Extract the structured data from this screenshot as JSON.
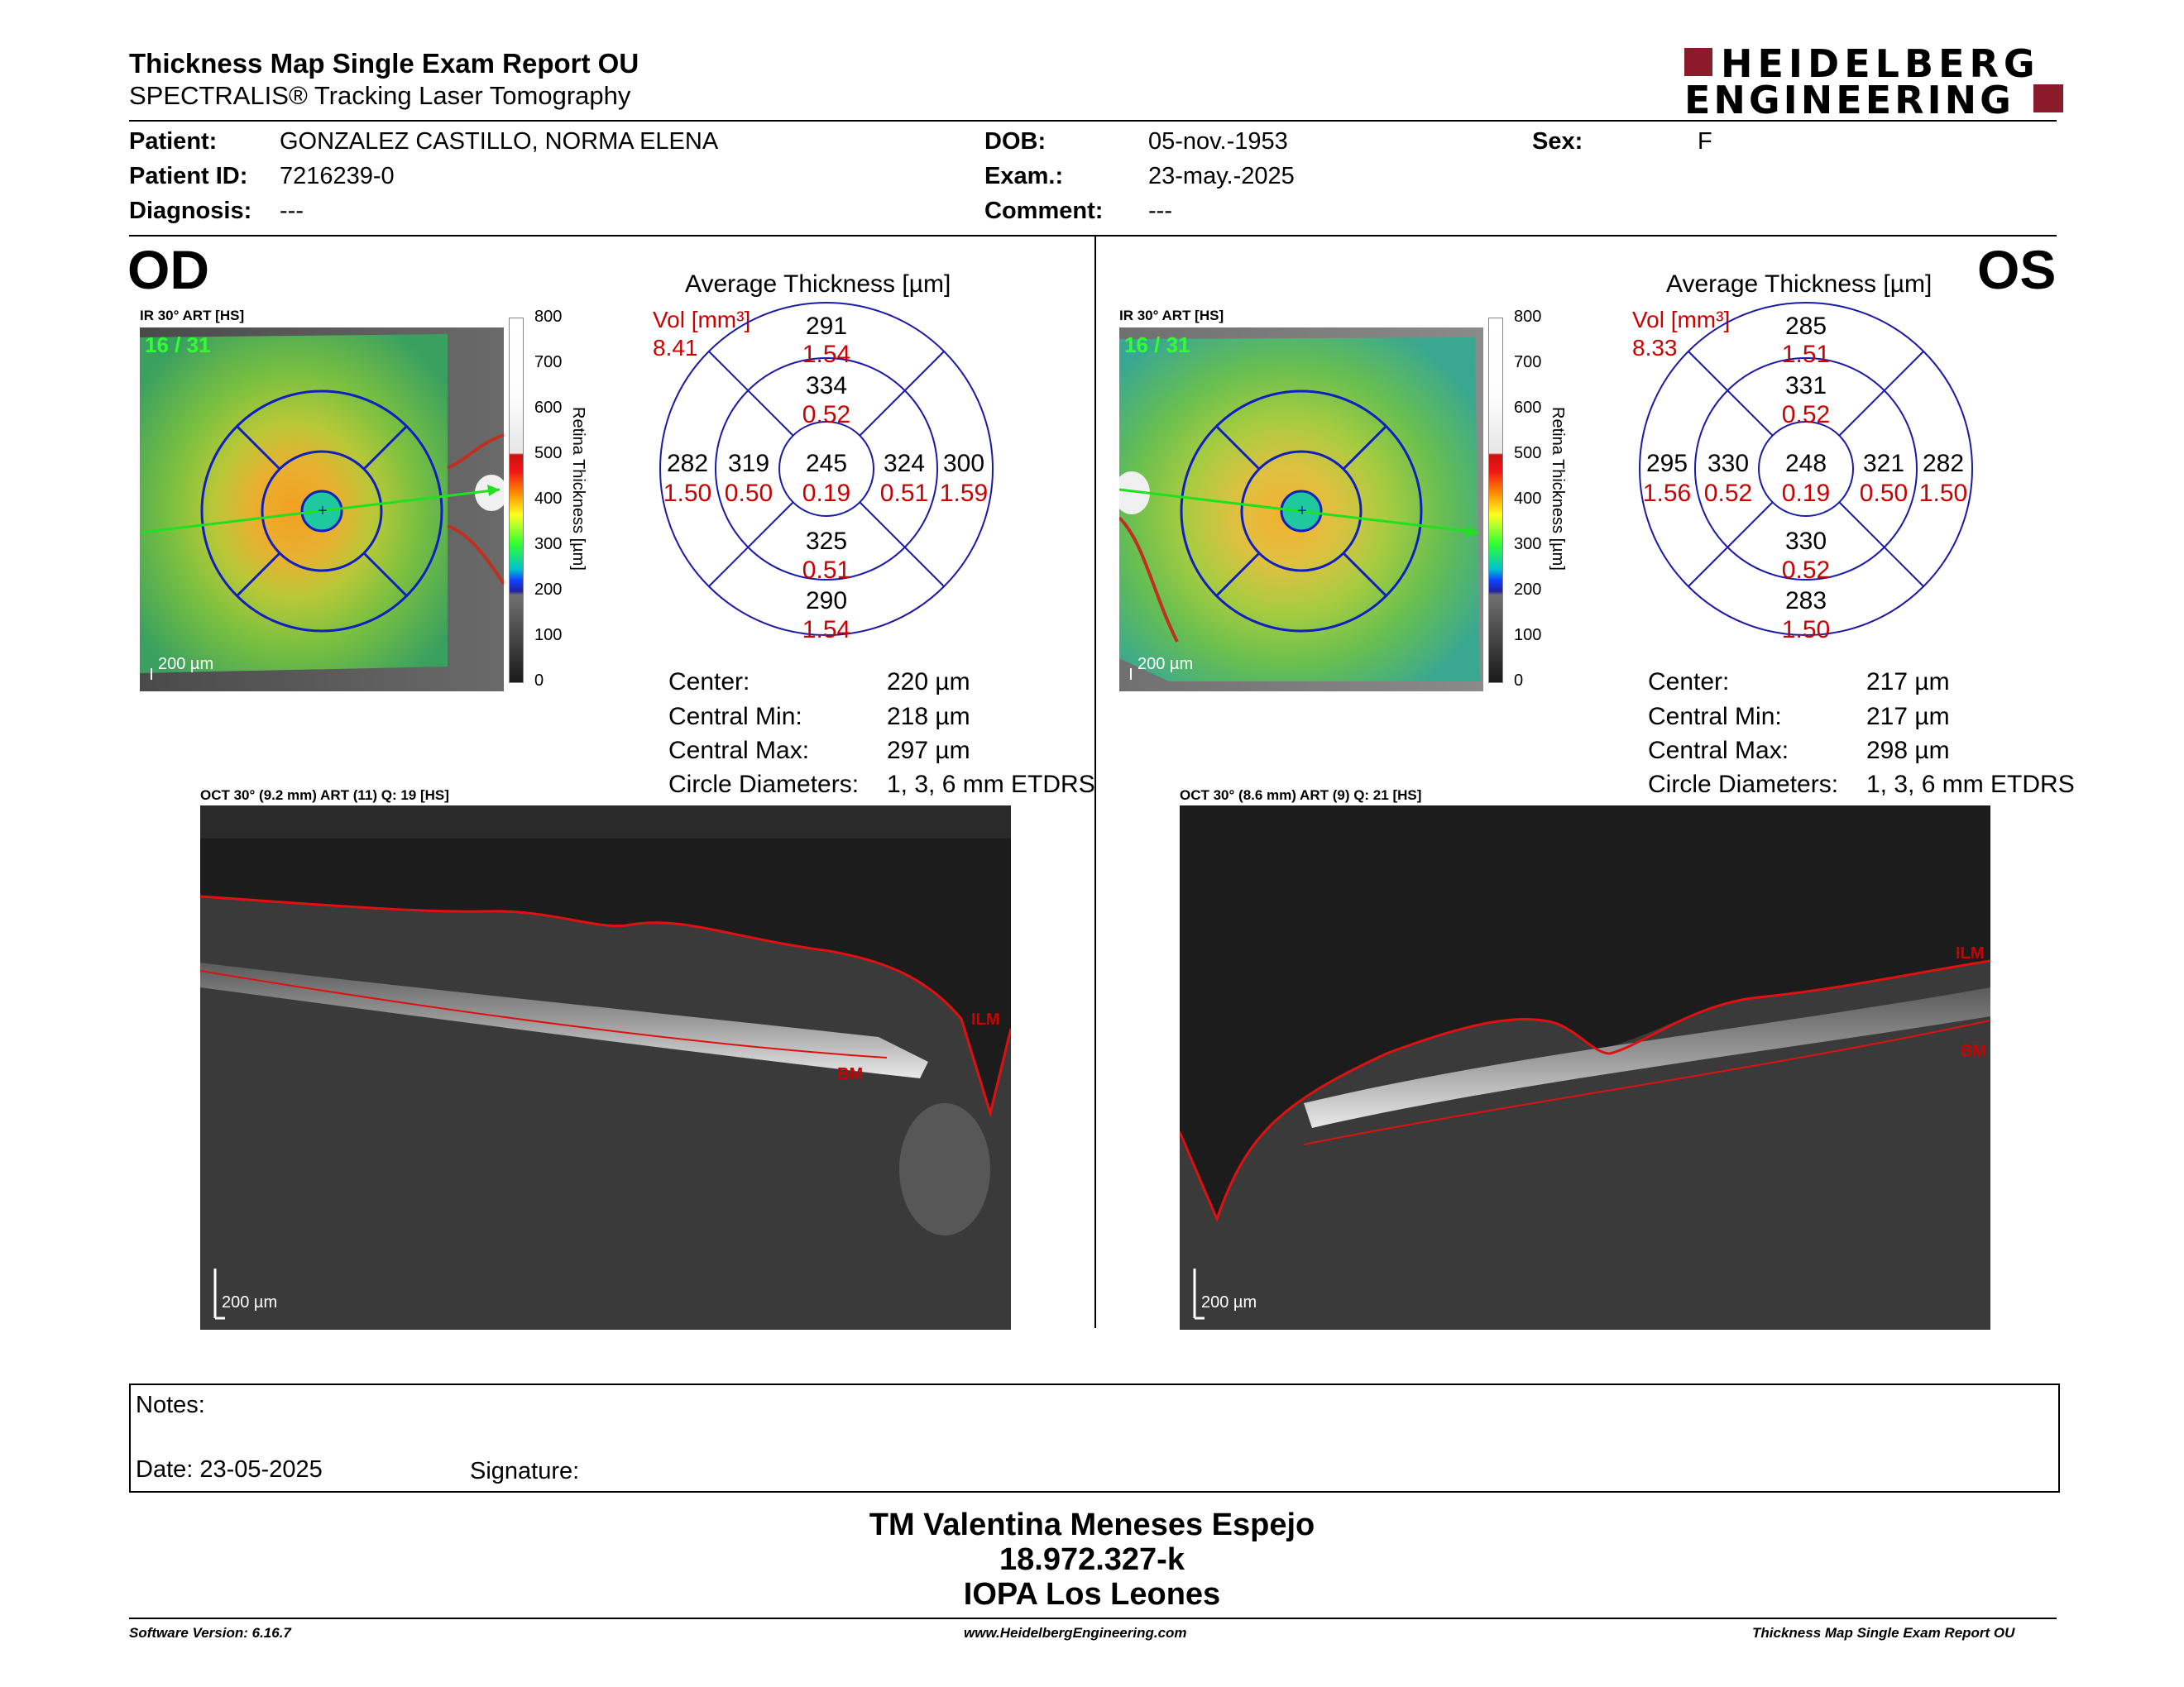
{
  "header": {
    "title": "Thickness Map Single Exam Report OU",
    "subtitle": "SPECTRALIS® Tracking Laser Tomography",
    "logo_line1": "HEIDELBERG",
    "logo_line2": "ENGINEERING",
    "logo_color": "#8b1a2b"
  },
  "patient": {
    "patient_label": "Patient:",
    "patient_value": "GONZALEZ CASTILLO, NORMA ELENA",
    "id_label": "Patient ID:",
    "id_value": "7216239-0",
    "diagnosis_label": "Diagnosis:",
    "diagnosis_value": "---",
    "dob_label": "DOB:",
    "dob_value": "05-nov.-1953",
    "exam_label": "Exam.:",
    "exam_value": "23-may.-2025",
    "comment_label": "Comment:",
    "comment_value": "---",
    "sex_label": "Sex:",
    "sex_value": "F"
  },
  "colorbar": {
    "ticks": [
      "800",
      "700",
      "600",
      "500",
      "400",
      "300",
      "200",
      "100",
      "0"
    ],
    "title": "Retina  Thickness [µm]"
  },
  "od": {
    "eye": "OD",
    "ir_caption": "IR 30° ART [HS]",
    "frame": "16 / 31",
    "scale": "200 µm",
    "avg_title": "Average Thickness [µm]",
    "vol_label": "Vol [mm³]",
    "vol_value": "8.41",
    "sectors": {
      "outer_top": "291",
      "outer_top_vol": "1.54",
      "inner_top": "334",
      "inner_top_vol": "0.52",
      "outer_left": "282",
      "outer_left_vol": "1.50",
      "inner_left": "319",
      "inner_left_vol": "0.50",
      "center": "245",
      "center_vol": "0.19",
      "inner_right": "324",
      "inner_right_vol": "0.51",
      "outer_right": "300",
      "outer_right_vol": "1.59",
      "inner_bottom": "325",
      "inner_bottom_vol": "0.51",
      "outer_bottom": "290",
      "outer_bottom_vol": "1.54"
    },
    "center_label": "Center:",
    "center_value": "220 µm",
    "cmin_label": "Central Min:",
    "cmin_value": "218 µm",
    "cmax_label": "Central Max:",
    "cmax_value": "297 µm",
    "diam_label": "Circle Diameters:",
    "diam_value": "1, 3, 6 mm ETDRS",
    "oct_caption": "OCT 30° (9.2 mm) ART (11) Q: 19 [HS]",
    "oct_ilm": "ILM",
    "oct_bm": "BM",
    "oct_scale": "200 µm"
  },
  "os": {
    "eye": "OS",
    "ir_caption": "IR 30° ART [HS]",
    "frame": "16 / 31",
    "scale": "200 µm",
    "avg_title": "Average Thickness [µm]",
    "vol_label": "Vol [mm³]",
    "vol_value": "8.33",
    "sectors": {
      "outer_top": "285",
      "outer_top_vol": "1.51",
      "inner_top": "331",
      "inner_top_vol": "0.52",
      "outer_left": "295",
      "outer_left_vol": "1.56",
      "inner_left": "330",
      "inner_left_vol": "0.52",
      "center": "248",
      "center_vol": "0.19",
      "inner_right": "321",
      "inner_right_vol": "0.50",
      "outer_right": "282",
      "outer_right_vol": "1.50",
      "inner_bottom": "330",
      "inner_bottom_vol": "0.52",
      "outer_bottom": "283",
      "outer_bottom_vol": "1.50"
    },
    "center_label": "Center:",
    "center_value": "217 µm",
    "cmin_label": "Central Min:",
    "cmin_value": "217 µm",
    "cmax_label": "Central Max:",
    "cmax_value": "298 µm",
    "diam_label": "Circle Diameters:",
    "diam_value": "1, 3, 6 mm ETDRS",
    "oct_caption": "OCT 30° (8.6 mm) ART (9) Q: 21 [HS]",
    "oct_ilm": "ILM",
    "oct_bm": "BM",
    "oct_scale": "200 µm"
  },
  "notes": {
    "notes_label": "Notes:",
    "date_label": "Date: 23-05-2025",
    "signature_label": "Signature:"
  },
  "signer": {
    "name": "TM Valentina Meneses Espejo",
    "rut": "18.972.327-k",
    "institution": "IOPA Los Leones"
  },
  "footer": {
    "software": "Software Version: 6.16.7",
    "website": "www.HeidelbergEngineering.com",
    "report": "Thickness Map Single Exam Report OU"
  }
}
